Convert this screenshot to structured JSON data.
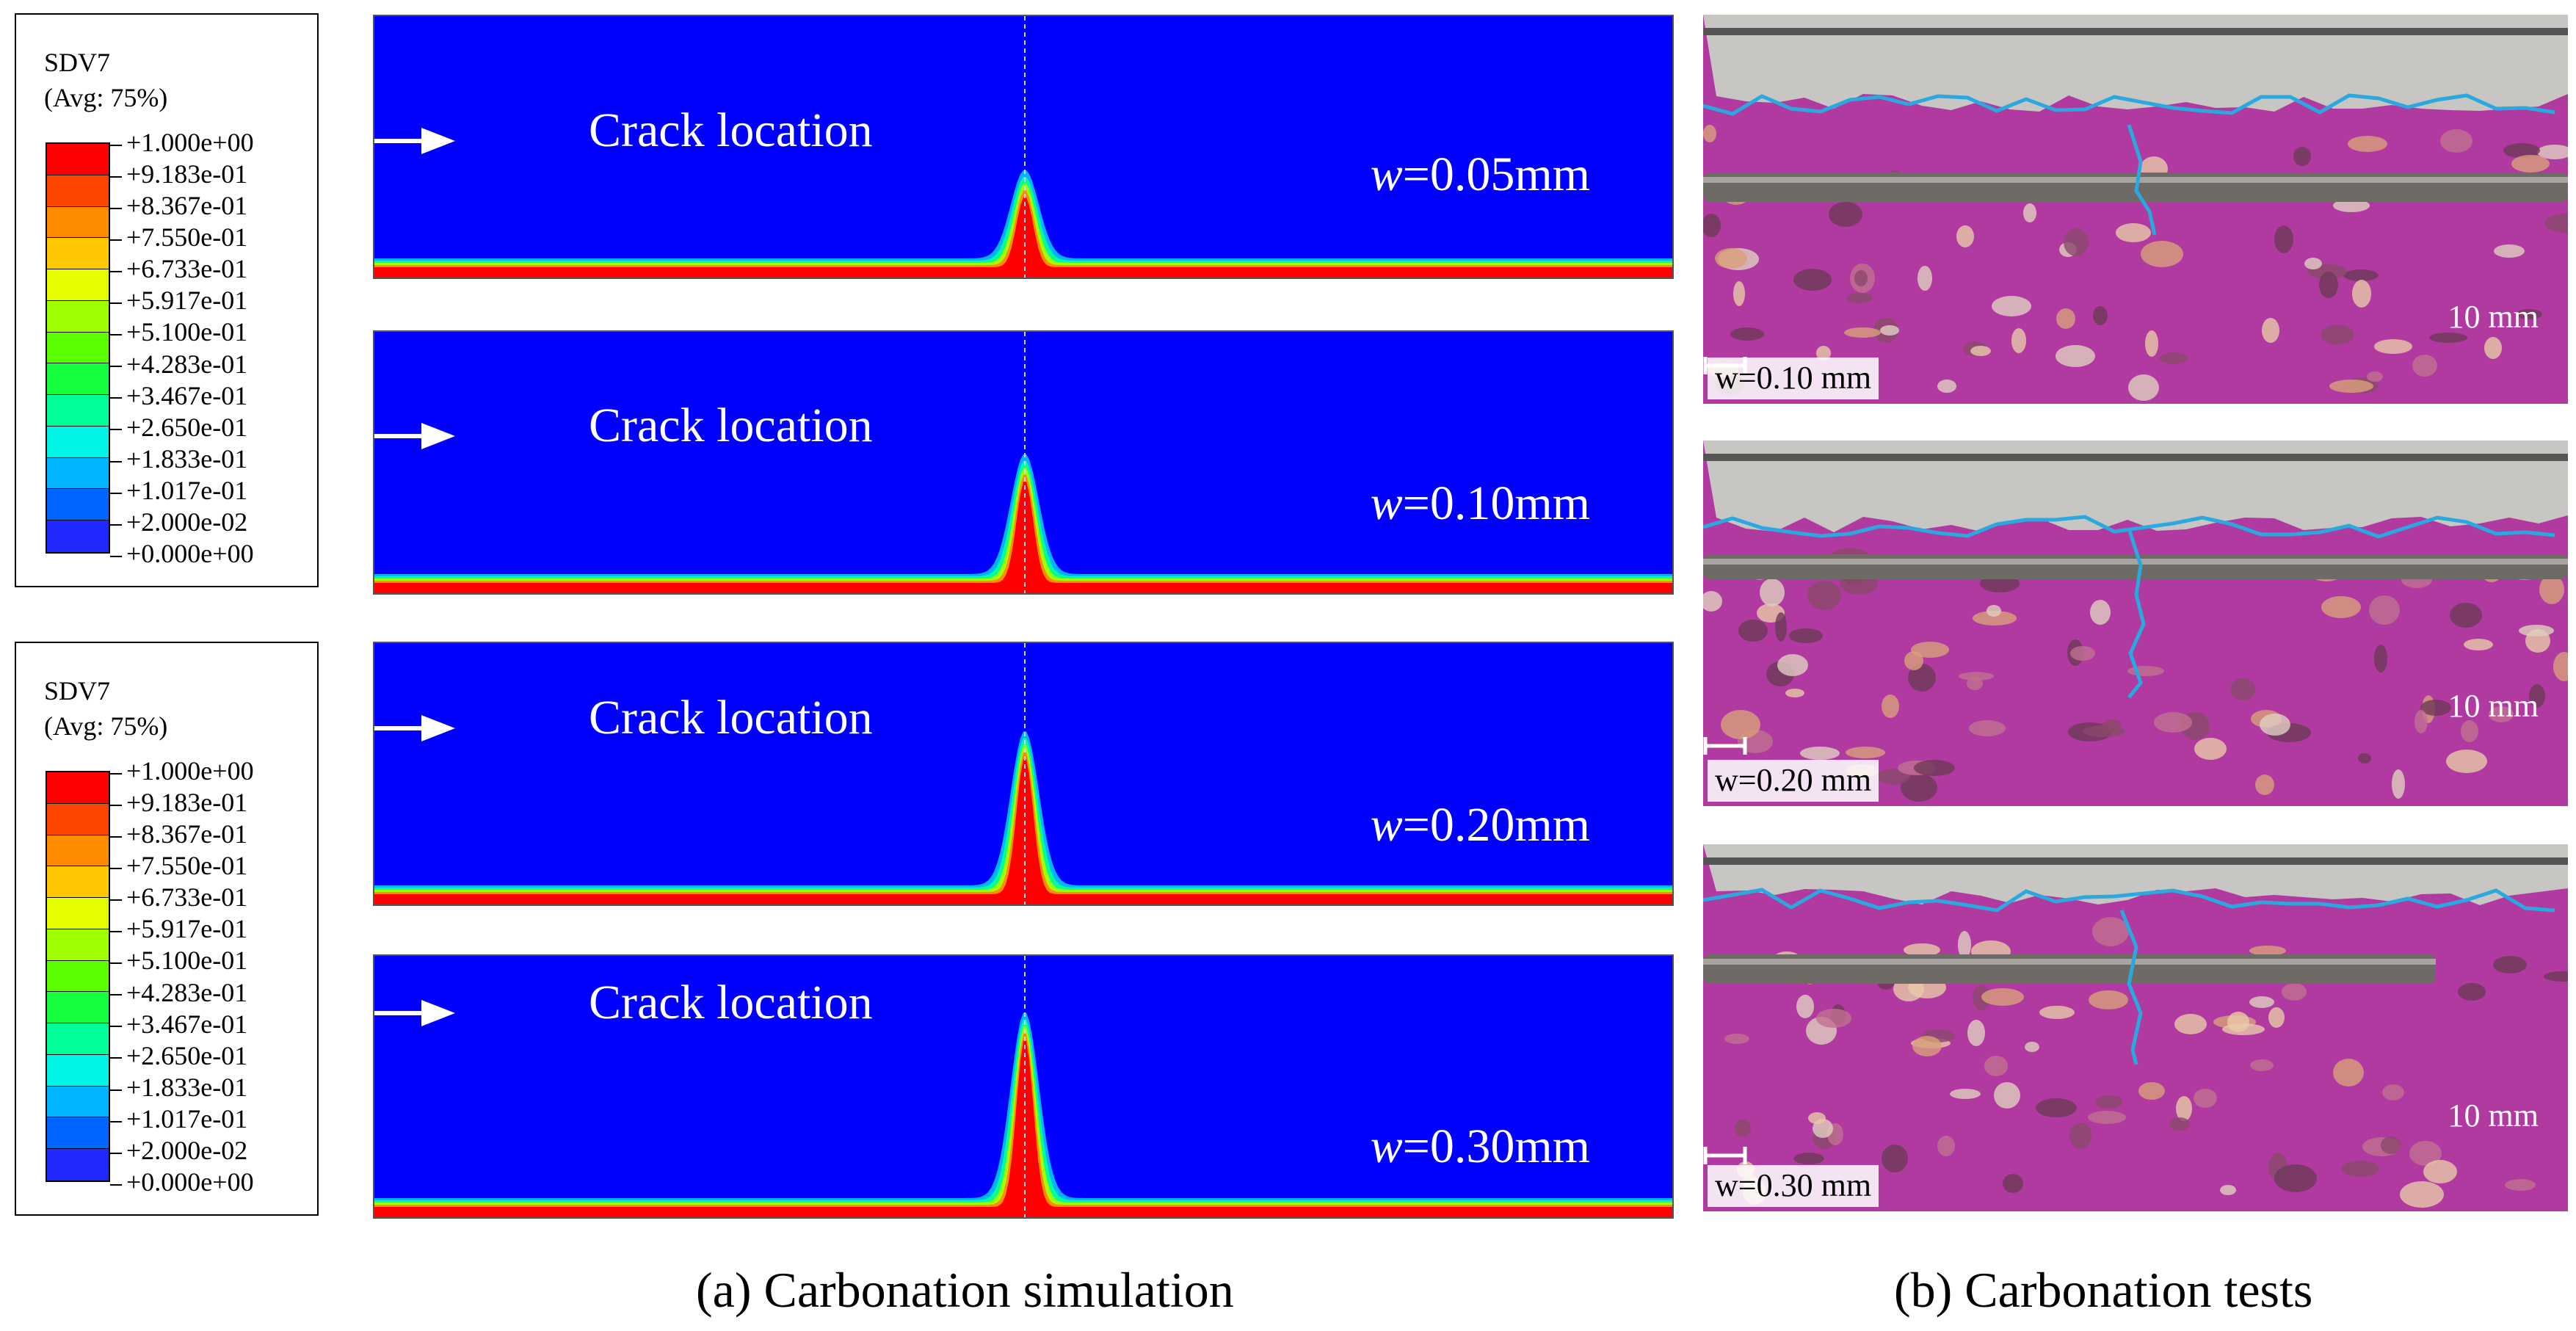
{
  "legend": {
    "variable": "SDV7",
    "averaging": "(Avg: 75%)",
    "ticks": [
      "+1.000e+00",
      "+9.183e-01",
      "+8.367e-01",
      "+7.550e-01",
      "+6.733e-01",
      "+5.917e-01",
      "+5.100e-01",
      "+4.283e-01",
      "+3.467e-01",
      "+2.650e-01",
      "+1.833e-01",
      "+1.017e-01",
      "+2.000e-02",
      "+0.000e+00"
    ],
    "colors": [
      "#ff0000",
      "#ff4600",
      "#ff8c00",
      "#ffc800",
      "#e6ff00",
      "#a0ff00",
      "#5aff00",
      "#14ff3c",
      "#00ff96",
      "#00f5e6",
      "#00b4ff",
      "#0064ff",
      "#1e28ff"
    ]
  },
  "simulation": {
    "panels": [
      {
        "crack_label": "Crack location",
        "w_symbol": "w",
        "w_value": "=0.05mm",
        "peak_level": 0.33
      },
      {
        "crack_label": "Crack location",
        "w_symbol": "w",
        "w_value": "=0.10mm",
        "peak_level": 0.45
      },
      {
        "crack_label": "Crack location",
        "w_symbol": "w",
        "w_value": "=0.20mm",
        "peak_level": 0.58
      },
      {
        "crack_label": "Crack location",
        "w_symbol": "w",
        "w_value": "=0.30mm",
        "peak_level": 0.7
      }
    ],
    "caption": "(a) Carbonation simulation"
  },
  "tests": {
    "photos": [
      {
        "label": "w=0.10 mm",
        "scale_text": "10 mm"
      },
      {
        "label": "w=0.20 mm",
        "scale_text": "10 mm"
      },
      {
        "label": "w=0.30 mm",
        "scale_text": "10 mm"
      }
    ],
    "caption": "(b) Carbonation tests"
  },
  "colors": {
    "uncarbonated": "#0000ff",
    "carbonated": "#ff0000",
    "phenolphthalein_pink": "#b03aa0",
    "carbonation_front_line": "#2aa8e0"
  }
}
